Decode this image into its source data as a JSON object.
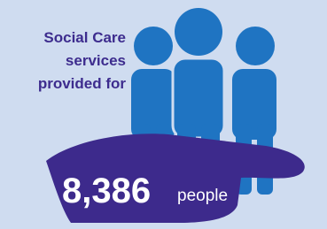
{
  "infographic": {
    "label_lines": [
      "Social Care",
      "services",
      "provided for"
    ],
    "count": "8,386",
    "unit": "people"
  }
}
